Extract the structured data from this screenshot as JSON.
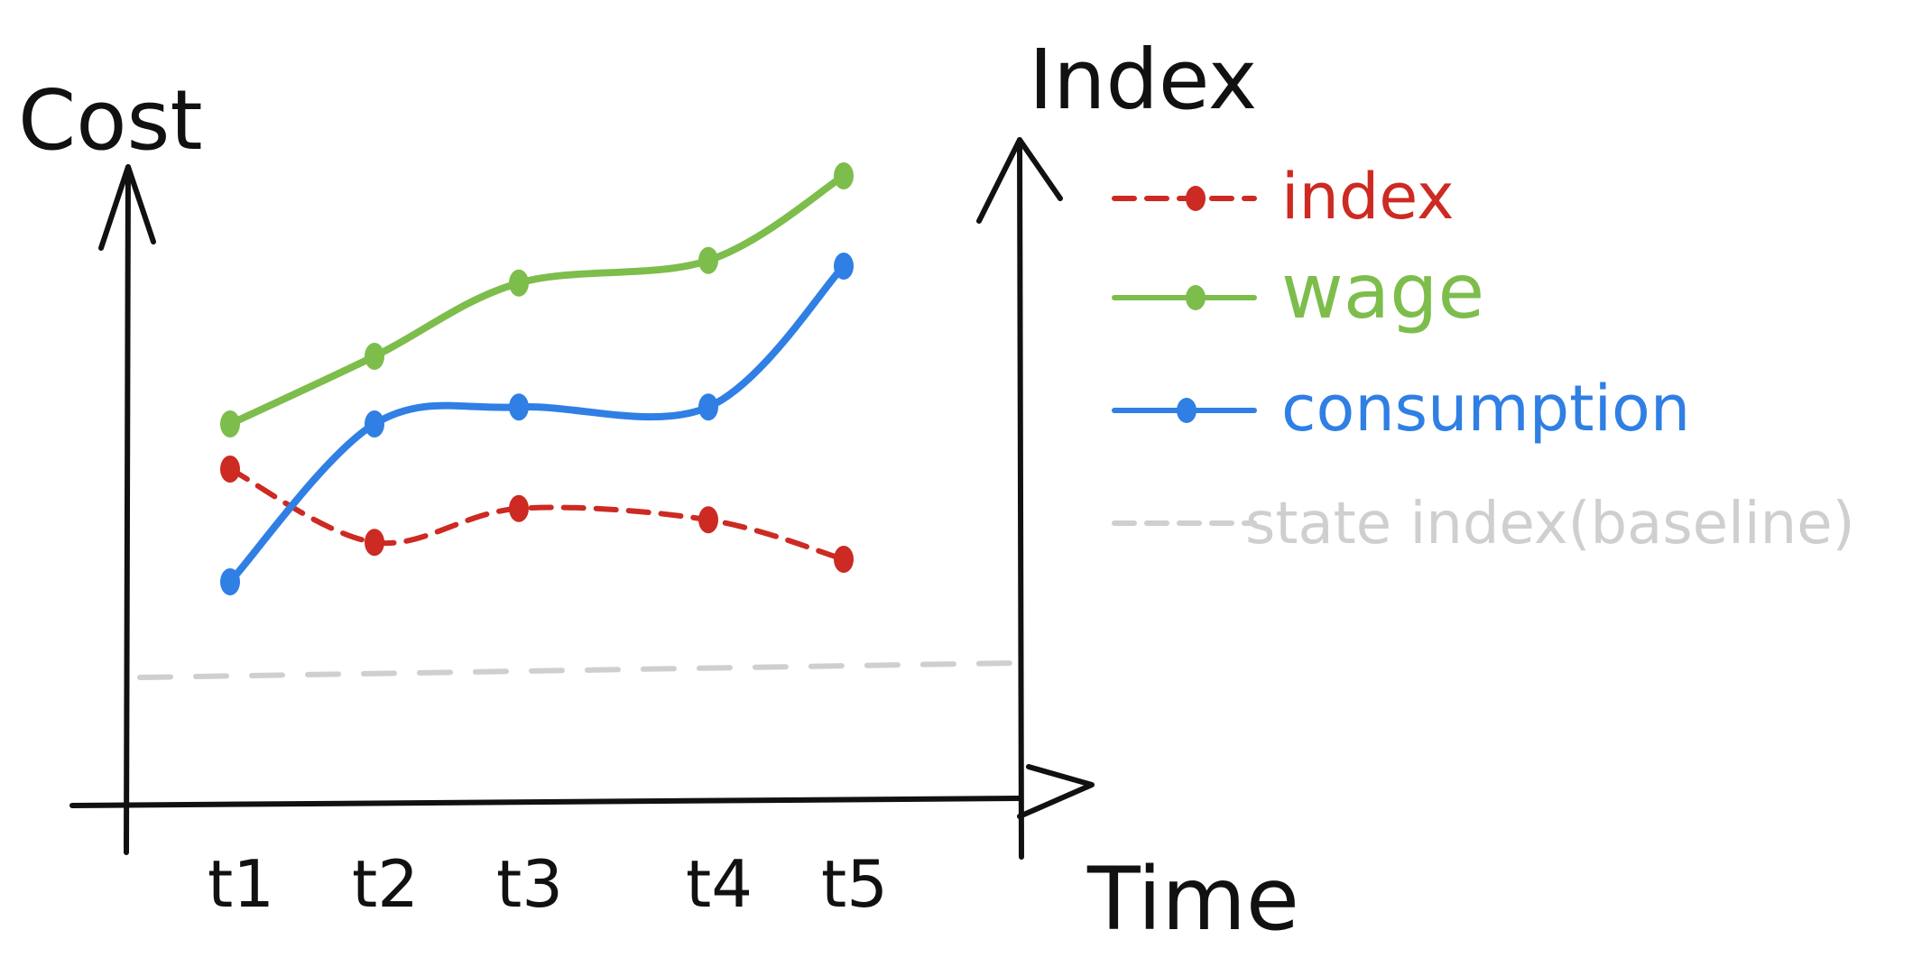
{
  "chart_data": {
    "type": "line",
    "left_axis_label": "Cost",
    "right_axis_label": "Index",
    "xlabel": "Time",
    "categories": [
      "t1",
      "t2",
      "t3",
      "t4",
      "t5"
    ],
    "series": [
      {
        "name": "index",
        "style": "dashed-markers",
        "color": "#cc2a22",
        "values": [
          2.8,
          2.15,
          2.45,
          2.35,
          2.0
        ]
      },
      {
        "name": "wage",
        "style": "solid-markers",
        "color": "#7dbd4c",
        "values": [
          3.2,
          3.8,
          4.45,
          4.65,
          5.4
        ]
      },
      {
        "name": "consumption",
        "style": "solid-markers",
        "color": "#2f7fe4",
        "values": [
          1.8,
          3.2,
          3.35,
          3.35,
          4.6
        ]
      },
      {
        "name": "state index(baseline)",
        "style": "dashed",
        "color": "#cfcfcf",
        "values": [
          1.0,
          1.0,
          1.0,
          1.0,
          1.0
        ]
      }
    ],
    "ylim": [
      0,
      6
    ],
    "grid": false,
    "legend": "right"
  }
}
